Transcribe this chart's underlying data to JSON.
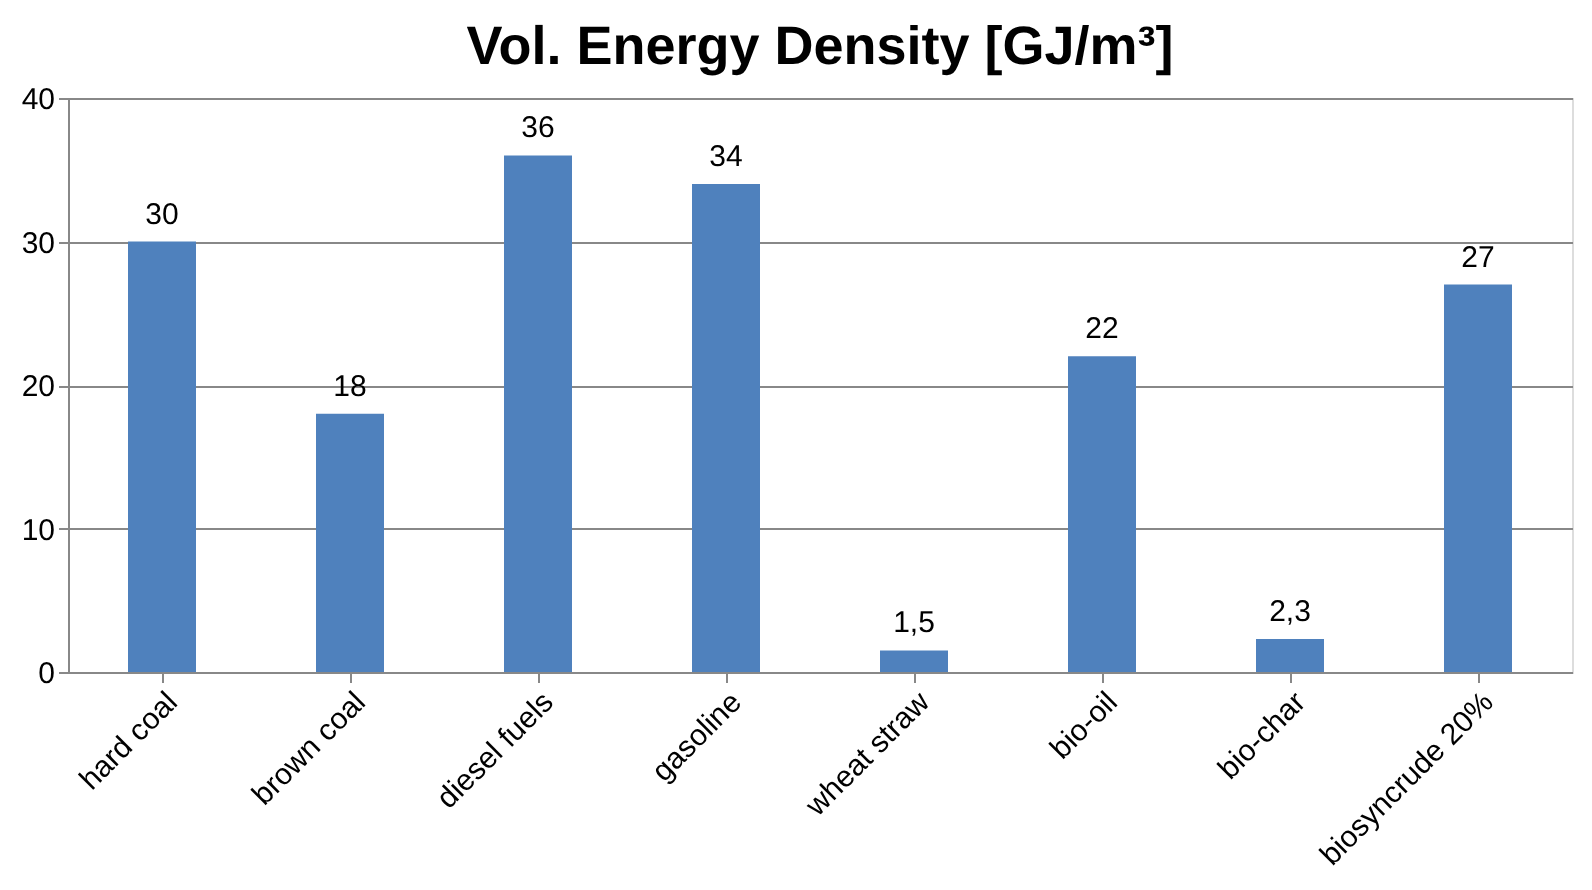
{
  "chart_data": {
    "type": "bar",
    "title": "Vol. Energy Density [GJ/m³]",
    "categories": [
      "hard coal",
      "brown coal",
      "diesel fuels",
      "gasoline",
      "wheat straw",
      "bio-oil",
      "bio-char",
      "biosyncrude 20%"
    ],
    "values": [
      30,
      18,
      36,
      34,
      1.5,
      22,
      2.3,
      27
    ],
    "value_labels": [
      "30",
      "18",
      "36",
      "34",
      "1,5",
      "22",
      "2,3",
      "27"
    ],
    "color": "#4f81bd",
    "ylim": [
      0,
      40
    ],
    "yticks": [
      0,
      10,
      20,
      30,
      40
    ],
    "grid": "y"
  }
}
